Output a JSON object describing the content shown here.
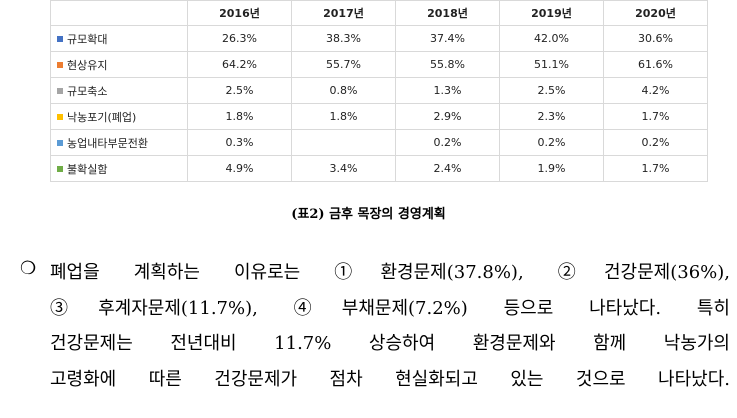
{
  "table": {
    "header": [
      "2016년",
      "2017년",
      "2018년",
      "2019년",
      "2020년"
    ],
    "rows": [
      {
        "label": "규모확대",
        "color": "#4472c4",
        "cells": [
          "26.3%",
          "38.3%",
          "37.4%",
          "42.0%",
          "30.6%"
        ]
      },
      {
        "label": "현상유지",
        "color": "#ed7d31",
        "cells": [
          "64.2%",
          "55.7%",
          "55.8%",
          "51.1%",
          "61.6%"
        ]
      },
      {
        "label": "규모축소",
        "color": "#a5a5a5",
        "cells": [
          "2.5%",
          "0.8%",
          "1.3%",
          "2.5%",
          "4.2%"
        ]
      },
      {
        "label": "낙농포기(폐업)",
        "color": "#ffc000",
        "cells": [
          "1.8%",
          "1.8%",
          "2.9%",
          "2.3%",
          "1.7%"
        ]
      },
      {
        "label": "농업내타부문전환",
        "color": "#5b9bd5",
        "cells": [
          "0.3%",
          null,
          "0.2%",
          "0.2%",
          "0.2%"
        ]
      },
      {
        "label": "불확실함",
        "color": "#70ad47",
        "cells": [
          "4.9%",
          "3.4%",
          "2.4%",
          "1.9%",
          "1.7%"
        ]
      }
    ]
  },
  "caption": "(표2) 금후 목장의 경영계획",
  "paragraph": {
    "bullet": "❍",
    "lines": [
      "폐업을 계획하는 이유로는 ①환경문제(37.8%), ②건강문제(36%),",
      "③후계자문제(11.7%), ④부채문제(7.2%) 등으로 나타났다. 특히",
      "건강문제는 전년대비 11.7% 상승하여 환경문제와 함께 낙농가의",
      "고령화에 따른 건강문제가 점차 현실화되고 있는 것으로 나타났다."
    ]
  }
}
